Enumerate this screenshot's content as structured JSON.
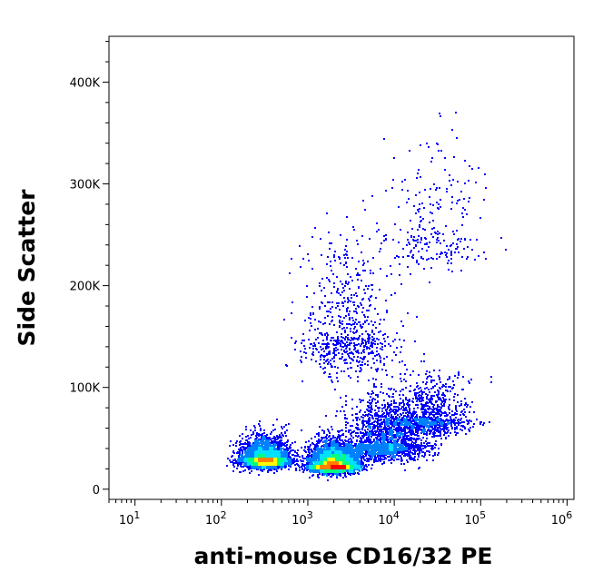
{
  "chart_data": {
    "type": "scatter",
    "title": "",
    "xlabel": "anti-mouse CD16/32 PE",
    "ylabel": "Side Scatter",
    "x_scale": "log",
    "xlim": [
      5,
      1200000
    ],
    "ylim": [
      -10000,
      445000
    ],
    "x_ticks": [
      {
        "value": 10,
        "base": "10",
        "exp": "1"
      },
      {
        "value": 100,
        "base": "10",
        "exp": "2"
      },
      {
        "value": 1000,
        "base": "10",
        "exp": "3"
      },
      {
        "value": 10000,
        "base": "10",
        "exp": "4"
      },
      {
        "value": 100000,
        "base": "10",
        "exp": "5"
      },
      {
        "value": 1000000,
        "base": "10",
        "exp": "6"
      }
    ],
    "y_ticks": [
      {
        "value": 0,
        "label": "0"
      },
      {
        "value": 100000,
        "label": "100K"
      },
      {
        "value": 200000,
        "label": "200K"
      },
      {
        "value": 300000,
        "label": "300K"
      },
      {
        "value": 400000,
        "label": "400K"
      }
    ],
    "grid": false,
    "legend": "none",
    "density_colors": [
      "#0000ff",
      "#0080ff",
      "#00e0ff",
      "#00ff80",
      "#ffff00",
      "#ff8000",
      "#ff0000"
    ],
    "populations": [
      {
        "x": 320,
        "y": 30000,
        "count": 3200
      },
      {
        "x": 2000,
        "y": 25000,
        "count": 4200
      },
      {
        "x": 8000,
        "y": 45000,
        "count": 1800
      },
      {
        "x": 25000,
        "y": 70000,
        "count": 900
      },
      {
        "x": 3000,
        "y": 150000,
        "count": 700
      },
      {
        "x": 30000,
        "y": 250000,
        "count": 250
      }
    ]
  }
}
